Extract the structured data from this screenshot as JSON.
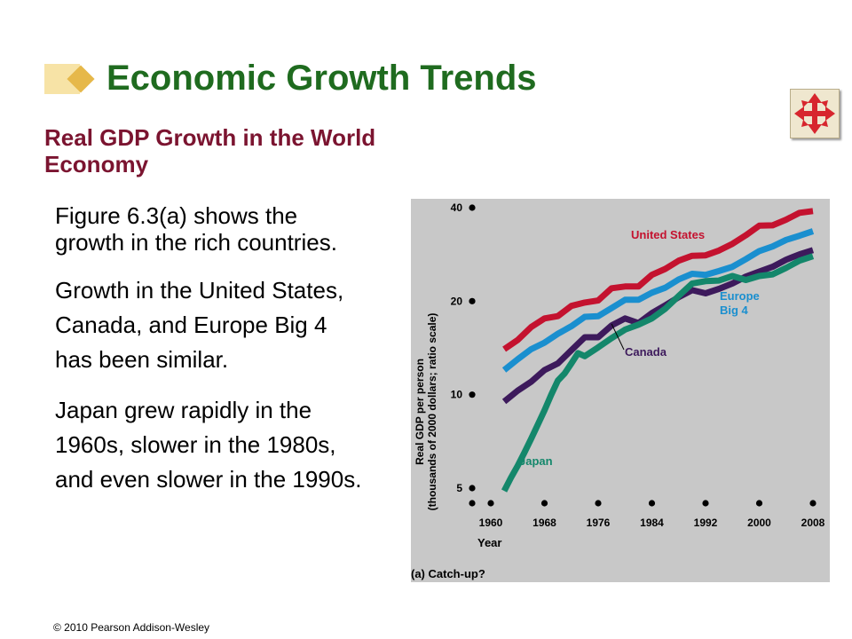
{
  "slide": {
    "title": "Economic Growth Trends",
    "subtitle": "Real GDP Growth in the World Economy",
    "bullets": [
      "Figure 6.3(a) shows the growth in the rich countries.",
      "Growth in the United States, Canada, and Europe Big 4 has been similar.",
      "Japan grew rapidly in the 1960s, slower in the 1980s, and even slower in the 1990s."
    ],
    "copyright": "© 2010 Pearson Addison-Wesley",
    "nav_icon": "four-arrow-move-icon"
  },
  "chart_data": {
    "type": "line",
    "caption": "(a) Catch-up?",
    "xlabel": "Year",
    "ylabel_line1": "Real GDP per person",
    "ylabel_line2": "(thousands of 2000 dollars; ratio scale)",
    "y_scale": "log",
    "ylim": [
      5,
      40
    ],
    "xlim": [
      1960,
      2008
    ],
    "x_ticks": [
      1960,
      1968,
      1976,
      1984,
      1992,
      2000,
      2008
    ],
    "y_ticks": [
      5,
      10,
      20,
      40
    ],
    "background": "#c8c8c8",
    "series": [
      {
        "name": "United States",
        "color": "#c4122f",
        "x": [
          1962,
          1964,
          1966,
          1968,
          1970,
          1972,
          1974,
          1976,
          1978,
          1980,
          1982,
          1984,
          1986,
          1988,
          1990,
          1992,
          1994,
          1996,
          1998,
          2000,
          2002,
          2004,
          2006,
          2008
        ],
        "y": [
          14.0,
          15.0,
          16.5,
          17.6,
          17.9,
          19.3,
          19.8,
          20.1,
          22.0,
          22.3,
          22.3,
          24.3,
          25.4,
          27.0,
          28.0,
          28.1,
          29.1,
          30.6,
          32.6,
          35.0,
          35.1,
          36.6,
          38.5,
          39.0
        ]
      },
      {
        "name": "Europe Big 4",
        "color": "#1a8fcf",
        "x": [
          1962,
          1964,
          1966,
          1968,
          1970,
          1972,
          1974,
          1976,
          1978,
          1980,
          1982,
          1984,
          1986,
          1988,
          1990,
          1992,
          1994,
          1996,
          1998,
          2000,
          2002,
          2004,
          2006,
          2008
        ],
        "y": [
          12.0,
          13.0,
          14.0,
          14.7,
          15.7,
          16.6,
          17.8,
          17.9,
          19.0,
          20.2,
          20.2,
          21.3,
          22.1,
          23.5,
          24.5,
          24.3,
          25.0,
          25.8,
          27.3,
          29.0,
          30.0,
          31.5,
          32.5,
          33.6
        ]
      },
      {
        "name": "Canada",
        "color": "#3d1a5c",
        "x": [
          1962,
          1964,
          1966,
          1968,
          1970,
          1972,
          1974,
          1976,
          1978,
          1980,
          1982,
          1984,
          1986,
          1988,
          1990,
          1992,
          1994,
          1996,
          1998,
          2000,
          2002,
          2004,
          2006,
          2008
        ],
        "y": [
          9.5,
          10.3,
          11.0,
          12.0,
          12.6,
          13.9,
          15.3,
          15.3,
          16.7,
          17.6,
          17.0,
          18.3,
          19.4,
          20.6,
          21.7,
          21.2,
          21.9,
          22.8,
          24.0,
          24.9,
          25.8,
          27.2,
          28.3,
          29.2
        ]
      },
      {
        "name": "Japan",
        "color": "#14876b",
        "x": [
          1962,
          1963,
          1964,
          1965,
          1966,
          1967,
          1968,
          1969,
          1970,
          1971,
          1972,
          1973,
          1974,
          1976,
          1978,
          1980,
          1982,
          1984,
          1986,
          1988,
          1990,
          1992,
          1994,
          1996,
          1998,
          2000,
          2002,
          2004,
          2006,
          2008
        ],
        "y": [
          4.9,
          5.4,
          5.9,
          6.5,
          7.2,
          8.0,
          8.9,
          10.0,
          11.1,
          11.7,
          12.6,
          13.6,
          13.3,
          14.2,
          15.2,
          16.2,
          16.8,
          17.6,
          18.9,
          20.8,
          22.8,
          23.2,
          23.3,
          24.1,
          23.4,
          24.1,
          24.4,
          25.6,
          27.0,
          27.9
        ]
      }
    ]
  }
}
